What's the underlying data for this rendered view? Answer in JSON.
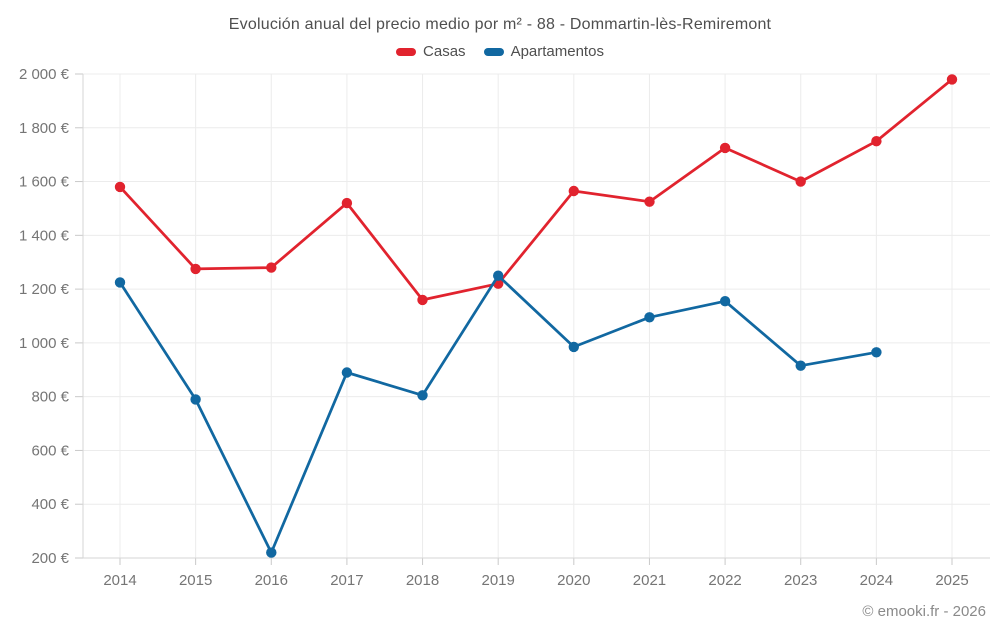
{
  "chart_data": {
    "type": "line",
    "title": "Evolución anual del precio medio por m² - 88 - Dommartin-lès-Remiremont",
    "categories": [
      "2014",
      "2015",
      "2016",
      "2017",
      "2018",
      "2019",
      "2020",
      "2021",
      "2022",
      "2023",
      "2024",
      "2025"
    ],
    "series": [
      {
        "name": "Casas",
        "color": "#e1232e",
        "values": [
          1580,
          1275,
          1280,
          1520,
          1160,
          1220,
          1565,
          1525,
          1725,
          1600,
          1750,
          1980
        ]
      },
      {
        "name": "Apartamentos",
        "color": "#1168a1",
        "values": [
          1225,
          790,
          220,
          890,
          805,
          1250,
          985,
          1095,
          1155,
          915,
          965,
          null
        ]
      }
    ],
    "xlabel": "",
    "ylabel": "",
    "ylim": [
      200,
      2000
    ],
    "ytick_step": 200,
    "ytick_suffix": "€",
    "grid": true,
    "legend_position": "top",
    "axis_text_color": "#757575",
    "gridline_color": "#ececec",
    "axis_line_color": "#d6d6d6",
    "tick_color": "#c9c9c9"
  },
  "footer": {
    "watermark": "© emooki.fr - 2026"
  }
}
